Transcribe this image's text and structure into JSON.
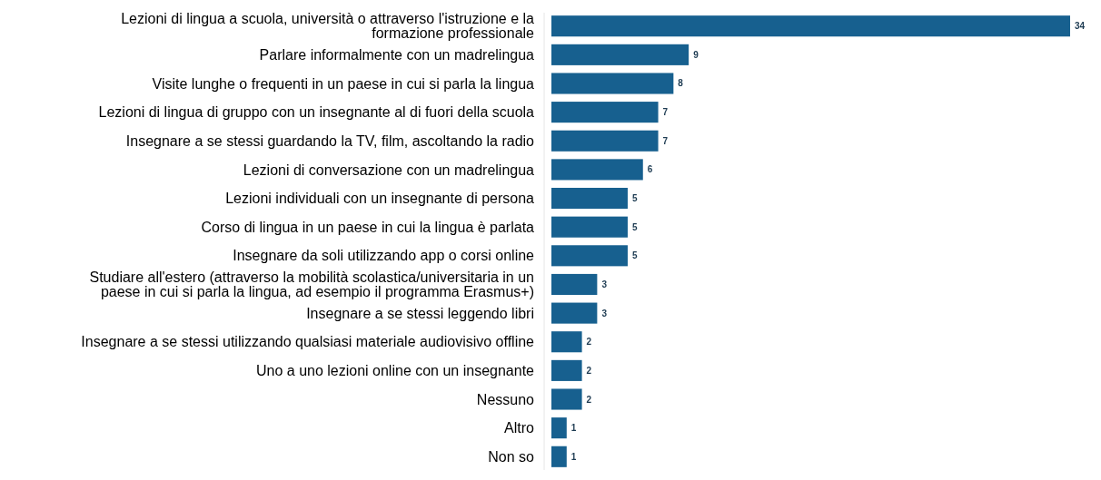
{
  "chart_data": {
    "type": "bar",
    "orientation": "horizontal",
    "xlim": [
      0,
      34
    ],
    "data_labels": true,
    "color": "#17608f",
    "categories": [
      "Lezioni di lingua a scuola, università o attraverso l'istruzione e la formazione professionale",
      "Parlare informalmente con un madrelingua",
      "Visite lunghe o frequenti in un paese in cui si parla la lingua",
      "Lezioni di lingua di gruppo con un insegnante al di fuori della scuola",
      "Insegnare a se stessi guardando la TV, film, ascoltando la radio",
      "Lezioni di conversazione con un madrelingua",
      "Lezioni individuali con un insegnante di persona",
      "Corso di lingua in un paese in cui la lingua è parlata",
      "Insegnare da soli utilizzando app o corsi online",
      "Studiare all'estero (attraverso la mobilità scolastica/universitaria in un paese in cui si parla la lingua, ad esempio il programma Erasmus+)",
      "Insegnare a se stessi leggendo libri",
      "Insegnare a se stessi utilizzando qualsiasi materiale audiovisivo offline",
      "Uno a uno lezioni online con un insegnante",
      "Nessuno",
      "Altro",
      "Non so"
    ],
    "values": [
      34,
      9,
      8,
      7,
      7,
      6,
      5,
      5,
      5,
      3,
      3,
      2,
      2,
      2,
      1,
      1
    ]
  }
}
